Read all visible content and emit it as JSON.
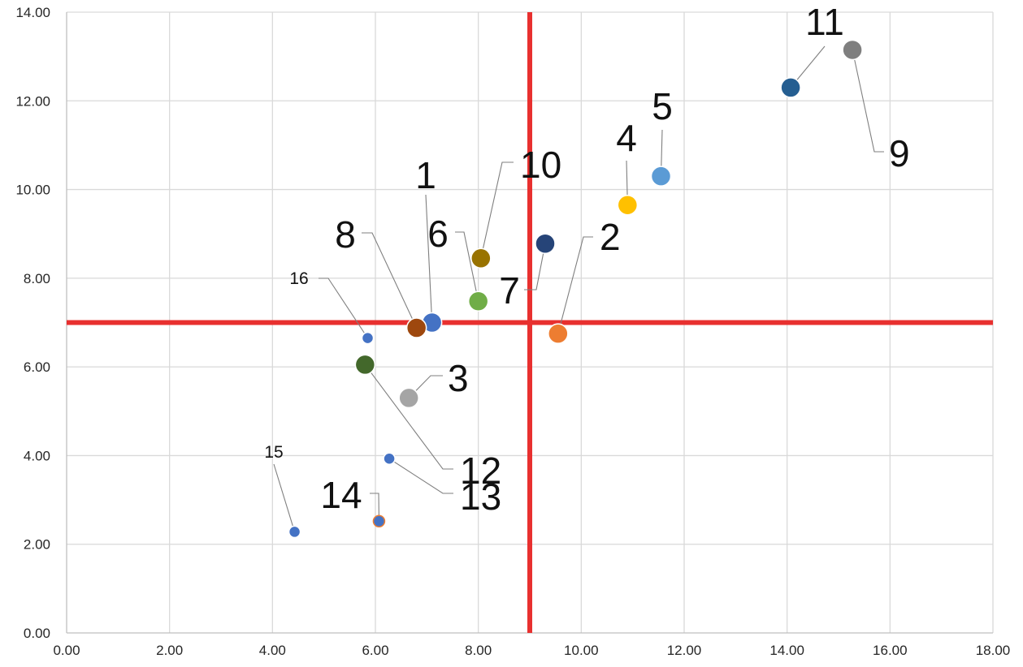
{
  "chart_data": {
    "type": "scatter",
    "title": "",
    "xlabel": "",
    "ylabel": "",
    "xlim": [
      0,
      18
    ],
    "ylim": [
      0,
      14
    ],
    "x_ticks": [
      "0.00",
      "2.00",
      "4.00",
      "6.00",
      "8.00",
      "10.00",
      "12.00",
      "14.00",
      "16.00",
      "18.00"
    ],
    "y_ticks": [
      "0.00",
      "2.00",
      "4.00",
      "6.00",
      "8.00",
      "10.00",
      "12.00",
      "14.00"
    ],
    "grid": true,
    "legend": "none",
    "reference_lines": {
      "x": 9.0,
      "y": 7.0,
      "color": "#e8302f"
    },
    "points": [
      {
        "label": "1",
        "x": 7.1,
        "y": 7.0,
        "color": "#4472c4"
      },
      {
        "label": "2",
        "x": 9.55,
        "y": 6.75,
        "color": "#ed7d31"
      },
      {
        "label": "3",
        "x": 6.65,
        "y": 5.3,
        "color": "#a5a5a5"
      },
      {
        "label": "4",
        "x": 10.9,
        "y": 9.65,
        "color": "#ffc000"
      },
      {
        "label": "5",
        "x": 11.55,
        "y": 10.3,
        "color": "#5b9bd5"
      },
      {
        "label": "6",
        "x": 8.0,
        "y": 7.48,
        "color": "#70ad47"
      },
      {
        "label": "7",
        "x": 9.3,
        "y": 8.78,
        "color": "#264478"
      },
      {
        "label": "8",
        "x": 6.8,
        "y": 6.88,
        "color": "#9e480e"
      },
      {
        "label": "9",
        "x": 15.27,
        "y": 13.15,
        "color": "#7f7f7f"
      },
      {
        "label": "10",
        "x": 8.05,
        "y": 8.45,
        "color": "#997300"
      },
      {
        "label": "11",
        "x": 14.07,
        "y": 12.3,
        "color": "#255e91"
      },
      {
        "label": "12",
        "x": 5.8,
        "y": 6.05,
        "color": "#43682b"
      },
      {
        "label": "13",
        "x": 6.27,
        "y": 3.93,
        "color": "#4472c4"
      },
      {
        "label": "14",
        "x": 6.07,
        "y": 2.52,
        "color": "#4472c4"
      },
      {
        "label": "15",
        "x": 4.43,
        "y": 2.28,
        "color": "#4472c4"
      },
      {
        "label": "16",
        "x": 5.85,
        "y": 6.65,
        "color": "#4472c4"
      }
    ]
  }
}
